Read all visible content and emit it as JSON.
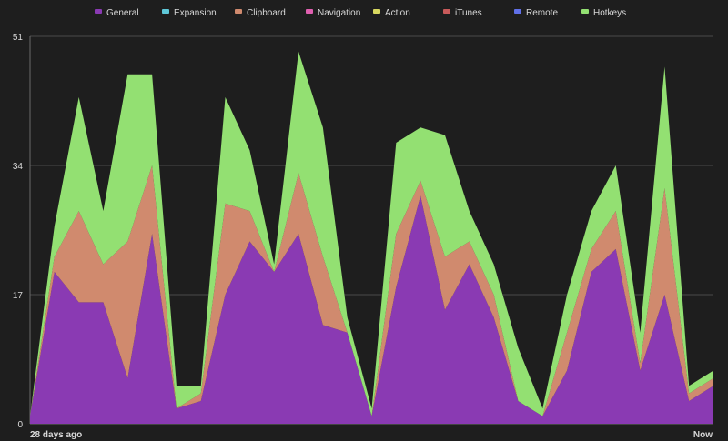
{
  "chart_data": {
    "type": "area",
    "stacked": true,
    "title": "",
    "xlabel": "",
    "ylabel": "",
    "ylim": [
      0,
      51
    ],
    "y_ticks": [
      "0",
      "17",
      "34",
      "51"
    ],
    "x_ticks": [
      "28 days ago",
      "Now"
    ],
    "grid": true,
    "legend_position": "top",
    "series": [
      {
        "name": "General",
        "color": "#8a3ab3",
        "values": [
          1,
          20,
          16,
          16,
          6,
          25,
          2,
          3,
          17,
          24,
          20,
          25,
          13,
          12,
          1,
          18,
          30,
          15,
          21,
          14,
          3,
          1,
          7,
          20,
          23,
          7,
          17,
          3,
          5
        ]
      },
      {
        "name": "Expansion",
        "color": "#5fc8d8",
        "values": [
          0,
          0,
          0,
          0,
          0,
          0,
          0,
          0,
          0,
          0,
          0,
          0,
          0,
          0,
          0,
          0,
          0,
          0,
          0,
          0,
          0,
          0,
          0,
          0,
          0,
          0,
          0,
          0,
          0
        ]
      },
      {
        "name": "Clipboard",
        "color": "#d08a6e",
        "values": [
          0,
          2,
          12,
          5,
          18,
          9,
          0,
          1,
          12,
          4,
          0,
          8,
          9,
          0,
          0,
          7,
          2,
          7,
          3,
          3,
          0,
          0,
          5,
          3,
          5,
          1,
          14,
          1,
          1
        ]
      },
      {
        "name": "Navigation",
        "color": "#e060b0",
        "values": [
          0,
          0,
          0,
          0,
          0,
          0,
          0,
          0,
          0,
          0,
          0,
          0,
          0,
          0,
          0,
          0,
          0,
          0,
          0,
          0,
          0,
          0,
          0,
          0,
          0,
          0,
          0,
          0,
          0
        ]
      },
      {
        "name": "Action",
        "color": "#d8d860",
        "values": [
          0,
          0,
          0,
          0,
          0,
          0,
          0,
          0,
          0,
          0,
          0,
          0,
          0,
          0,
          0,
          0,
          0,
          0,
          0,
          0,
          0,
          0,
          0,
          0,
          0,
          0,
          0,
          0,
          0
        ]
      },
      {
        "name": "iTunes",
        "color": "#c85a5a",
        "values": [
          0,
          0,
          0,
          0,
          0,
          0,
          0,
          0,
          0,
          0,
          0,
          0,
          0,
          0,
          0,
          0,
          0,
          0,
          0,
          0,
          0,
          0,
          0,
          0,
          0,
          0,
          0,
          0,
          0
        ]
      },
      {
        "name": "Remote",
        "color": "#6070e8",
        "values": [
          0,
          0,
          0,
          0,
          0,
          0,
          0,
          0,
          0,
          0,
          0,
          0,
          0,
          0,
          0,
          0,
          0,
          0,
          0,
          0,
          0,
          0,
          0,
          0,
          0,
          0,
          0,
          0,
          0
        ]
      },
      {
        "name": "Hotkeys",
        "color": "#93e072",
        "values": [
          0,
          4,
          15,
          7,
          22,
          12,
          3,
          1,
          14,
          8,
          1,
          16,
          17,
          2,
          1,
          12,
          7,
          16,
          4,
          4,
          7,
          1,
          5,
          5,
          6,
          4,
          16,
          1,
          1
        ]
      }
    ]
  }
}
